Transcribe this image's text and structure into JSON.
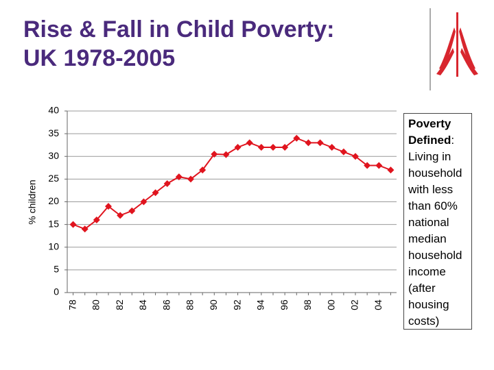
{
  "title": [
    "Rise & Fall in Child Poverty:",
    "UK 1978-2005"
  ],
  "sidebar": {
    "heading": "Poverty Defined",
    "text": ": Living in household with less than 60% national median household income (after housing costs)"
  },
  "chart_data": {
    "type": "line",
    "y_label": "% children",
    "categories": [
      "78",
      null,
      "80",
      null,
      "82",
      null,
      "84",
      null,
      "86",
      null,
      "88",
      null,
      "90",
      null,
      "92",
      null,
      "94",
      null,
      "96",
      null,
      "98",
      null,
      "00",
      null,
      "02",
      null,
      "04",
      null
    ],
    "series": [
      {
        "name": "Child poverty",
        "color": "#e0141e",
        "values": [
          15,
          14,
          16,
          19,
          17,
          18,
          20,
          22,
          24,
          25.5,
          25,
          27,
          30.5,
          30.4,
          32,
          33,
          32,
          32,
          32,
          34,
          33,
          33,
          32,
          31,
          30,
          28,
          28,
          27
        ]
      }
    ],
    "ylim": [
      0,
      40
    ],
    "yticks": [
      0,
      5,
      10,
      15,
      20,
      25,
      30,
      35,
      40
    ],
    "grid": true
  }
}
